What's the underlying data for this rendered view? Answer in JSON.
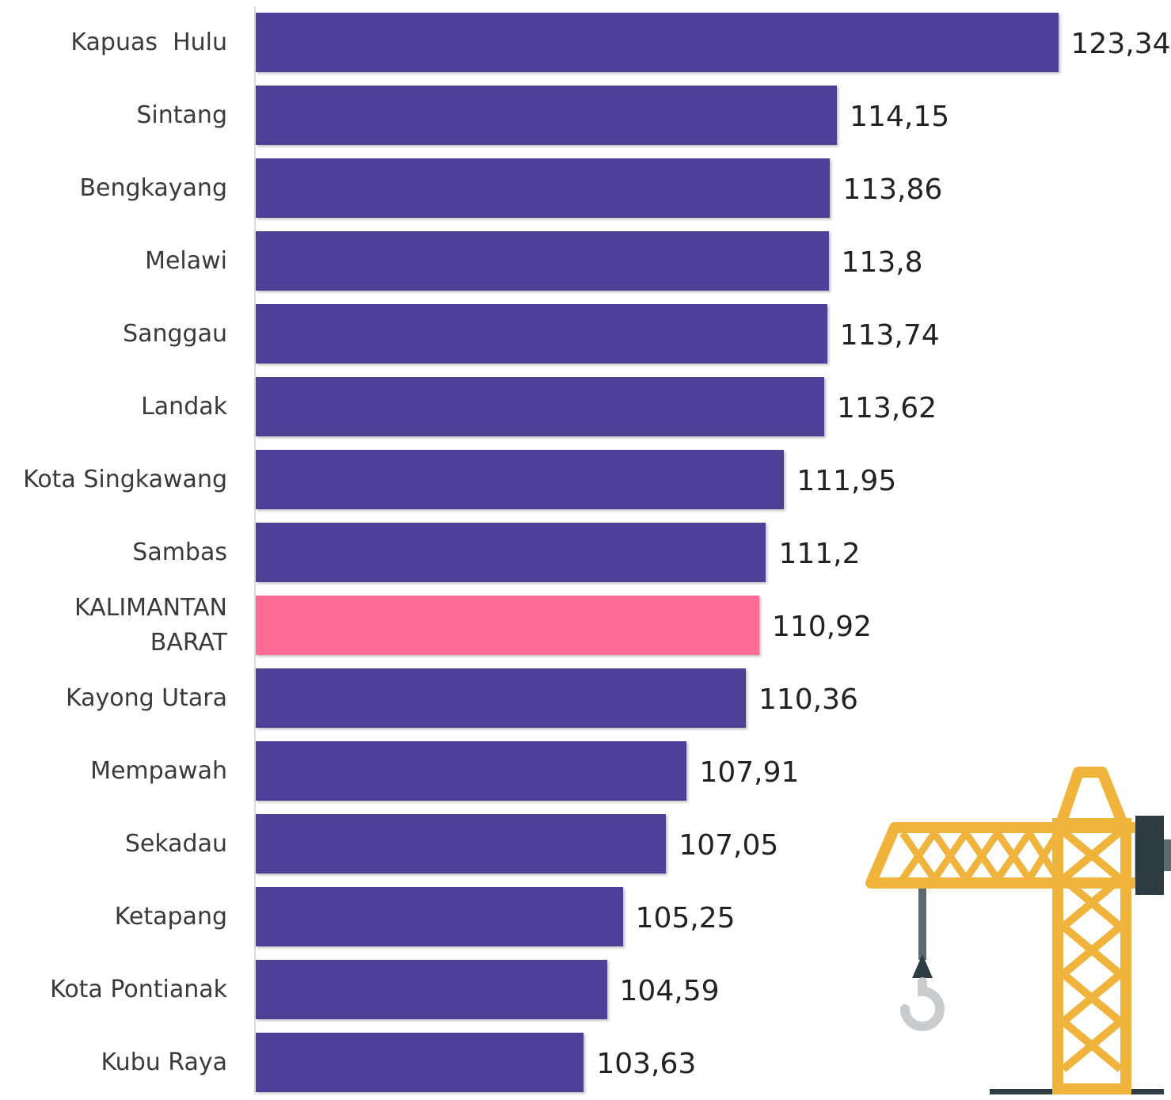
{
  "chart_data": {
    "type": "bar",
    "orientation": "horizontal",
    "categories": [
      "Kapuas  Hulu",
      "Sintang",
      "Bengkayang",
      "Melawi",
      "Sanggau",
      "Landak",
      "Kota Singkawang",
      "Sambas",
      "KALIMANTAN BARAT",
      "Kayong Utara",
      "Mempawah",
      "Sekadau",
      "Ketapang",
      "Kota Pontianak",
      "Kubu Raya"
    ],
    "values": [
      123.34,
      114.15,
      113.86,
      113.8,
      113.74,
      113.62,
      111.95,
      111.2,
      110.92,
      110.36,
      107.91,
      107.05,
      105.25,
      104.59,
      103.63
    ],
    "value_labels": [
      "123,34",
      "114,15",
      "113,86",
      "113,8",
      "113,74",
      "113,62",
      "111,95",
      "111,2",
      "110,92",
      "110,36",
      "107,91",
      "107,05",
      "105,25",
      "104,59",
      "103,63"
    ],
    "colors": [
      "#4e3f98",
      "#4e3f98",
      "#4e3f98",
      "#4e3f98",
      "#4e3f98",
      "#4e3f98",
      "#4e3f98",
      "#4e3f98",
      "#fe6b94",
      "#4e3f98",
      "#4e3f98",
      "#4e3f98",
      "#4e3f98",
      "#4e3f98",
      "#4e3f98"
    ],
    "xlim": [
      90,
      125
    ]
  }
}
